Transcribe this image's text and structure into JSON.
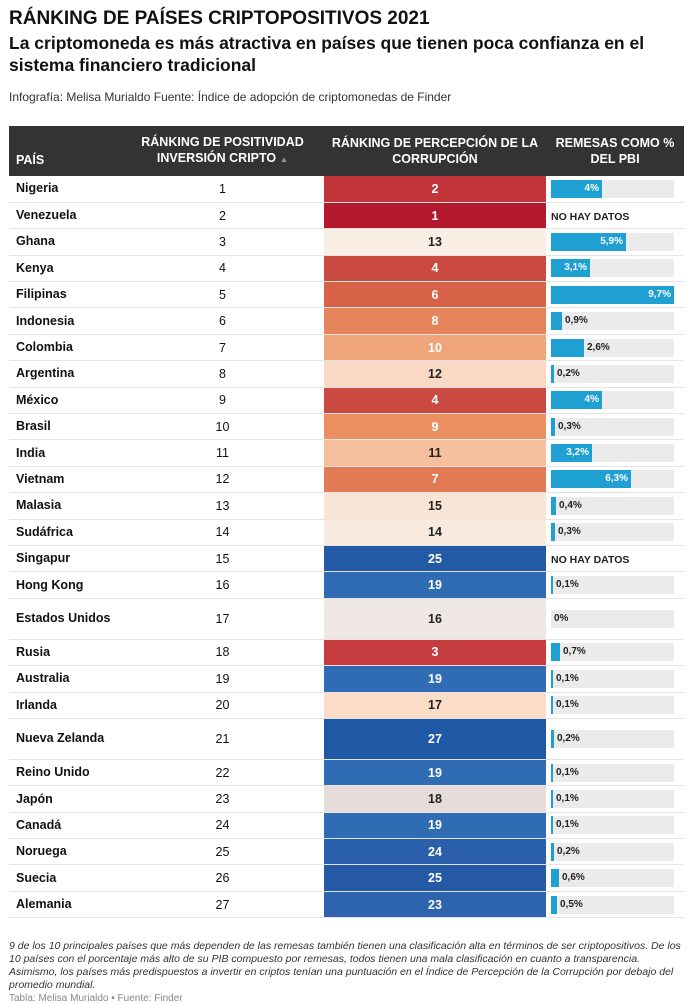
{
  "header": {
    "title": "RÁNKING DE PAÍSES CRIPTOPOSITIVOS 2021",
    "subtitle": "La criptomoneda es más atractiva en países que tienen poca confianza en el sistema financiero tradicional",
    "credit": "Infografía: Melisa Murialdo Fuente: Índice de adopción de criptomonedas de Finder"
  },
  "columns": {
    "country": "PAÍS",
    "positivity": "RÁNKING DE POSITIVIDAD INVERSIÓN CRIPTO",
    "sort_arrow": "▲",
    "corruption": "RÁNKING DE PERCEPCIÓN DE LA CORRUPCIÓN",
    "remittances": "REMESAS COMO % DEL PBI"
  },
  "colors": {
    "corr_1": "#b3182c",
    "corr_2": "#c1343a",
    "corr_3": "#c63c3e",
    "corr_4": "#ca4a42",
    "corr_6": "#d86248",
    "corr_7": "#e17a55",
    "corr_8": "#e6855b",
    "corr_9": "#ec9062",
    "corr_10": "#f0a47a",
    "corr_11": "#f6c09e",
    "corr_12": "#f9d9c4",
    "corr_13": "#f8eee3",
    "corr_14": "#f8eadd",
    "corr_15": "#f9e5d6",
    "corr_16": "#eee7e3",
    "corr_17": "#fbdcc6",
    "corr_18": "#e5dcdb",
    "corr_19": "#2f6cb3",
    "corr_23": "#2e64ae",
    "corr_24": "#2a5fab",
    "corr_25": "#2459a5",
    "corr_27": "#1f58a5",
    "bar": "#1fa0d3"
  },
  "remittance_scale_max": 9.7,
  "chart_data": {
    "type": "table",
    "title": "RÁNKING DE PAÍSES CRIPTOPOSITIVOS 2021",
    "rows": [
      {
        "country": "Nigeria",
        "positivity": "1",
        "corruption": "2",
        "remittance": 4,
        "remittance_label": "4%"
      },
      {
        "country": "Venezuela",
        "positivity": "2",
        "corruption": "1",
        "remittance": null,
        "remittance_label": "NO HAY DATOS"
      },
      {
        "country": "Ghana",
        "positivity": "3",
        "corruption": "13",
        "remittance": 5.9,
        "remittance_label": "5,9%"
      },
      {
        "country": "Kenya",
        "positivity": "4",
        "corruption": "4",
        "remittance": 3.1,
        "remittance_label": "3,1%"
      },
      {
        "country": "Filipinas",
        "positivity": "5",
        "corruption": "6",
        "remittance": 9.7,
        "remittance_label": "9,7%"
      },
      {
        "country": "Indonesia",
        "positivity": "6",
        "corruption": "8",
        "remittance": 0.9,
        "remittance_label": "0,9%"
      },
      {
        "country": "Colombia",
        "positivity": "7",
        "corruption": "10",
        "remittance": 2.6,
        "remittance_label": "2,6%"
      },
      {
        "country": "Argentina",
        "positivity": "8",
        "corruption": "12",
        "remittance": 0.2,
        "remittance_label": "0,2%"
      },
      {
        "country": "México",
        "positivity": "9",
        "corruption": "4",
        "remittance": 4,
        "remittance_label": "4%"
      },
      {
        "country": "Brasil",
        "positivity": "10",
        "corruption": "9",
        "remittance": 0.3,
        "remittance_label": "0,3%"
      },
      {
        "country": "India",
        "positivity": "11",
        "corruption": "11",
        "remittance": 3.2,
        "remittance_label": "3,2%"
      },
      {
        "country": "Vietnam",
        "positivity": "12",
        "corruption": "7",
        "remittance": 6.3,
        "remittance_label": "6,3%"
      },
      {
        "country": "Malasia",
        "positivity": "13",
        "corruption": "15",
        "remittance": 0.4,
        "remittance_label": "0,4%"
      },
      {
        "country": "Sudáfrica",
        "positivity": "14",
        "corruption": "14",
        "remittance": 0.3,
        "remittance_label": "0,3%"
      },
      {
        "country": "Singapur",
        "positivity": "15",
        "corruption": "25",
        "remittance": null,
        "remittance_label": "NO HAY DATOS"
      },
      {
        "country": "Hong Kong",
        "positivity": "16",
        "corruption": "19",
        "remittance": 0.1,
        "remittance_label": "0,1%"
      },
      {
        "country": "Estados Unidos",
        "positivity": "17",
        "corruption": "16",
        "remittance": 0,
        "remittance_label": "0%"
      },
      {
        "country": "Rusia",
        "positivity": "18",
        "corruption": "3",
        "remittance": 0.7,
        "remittance_label": "0,7%"
      },
      {
        "country": "Australia",
        "positivity": "19",
        "corruption": "19",
        "remittance": 0.1,
        "remittance_label": "0,1%"
      },
      {
        "country": "Irlanda",
        "positivity": "20",
        "corruption": "17",
        "remittance": 0.1,
        "remittance_label": "0,1%"
      },
      {
        "country": "Nueva Zelanda",
        "positivity": "21",
        "corruption": "27",
        "remittance": 0.2,
        "remittance_label": "0,2%"
      },
      {
        "country": "Reino Unido",
        "positivity": "22",
        "corruption": "19",
        "remittance": 0.1,
        "remittance_label": "0,1%"
      },
      {
        "country": "Japón",
        "positivity": "23",
        "corruption": "18",
        "remittance": 0.1,
        "remittance_label": "0,1%"
      },
      {
        "country": "Canadá",
        "positivity": "24",
        "corruption": "19",
        "remittance": 0.1,
        "remittance_label": "0,1%"
      },
      {
        "country": "Noruega",
        "positivity": "25",
        "corruption": "24",
        "remittance": 0.2,
        "remittance_label": "0,2%"
      },
      {
        "country": "Suecia",
        "positivity": "26",
        "corruption": "25",
        "remittance": 0.6,
        "remittance_label": "0,6%"
      },
      {
        "country": "Alemania",
        "positivity": "27",
        "corruption": "23",
        "remittance": 0.5,
        "remittance_label": "0,5%"
      }
    ]
  },
  "footnote": "9 de los 10 principales países que más dependen de las remesas también tienen una clasificación alta en términos de ser criptopositivos. De los 10 países con el porcentaje más alto de su PIB compuesto por remesas, todos tienen una mala clasificación en cuanto a transparencia. Asimismo, los países más predispuestos a invertir en criptos tenían una puntuación en el Índice de Percepción de la Corrupción por debajo del promedio mundial.",
  "source_line": "Tabla: Melisa Murialdo • Fuente: Finder"
}
